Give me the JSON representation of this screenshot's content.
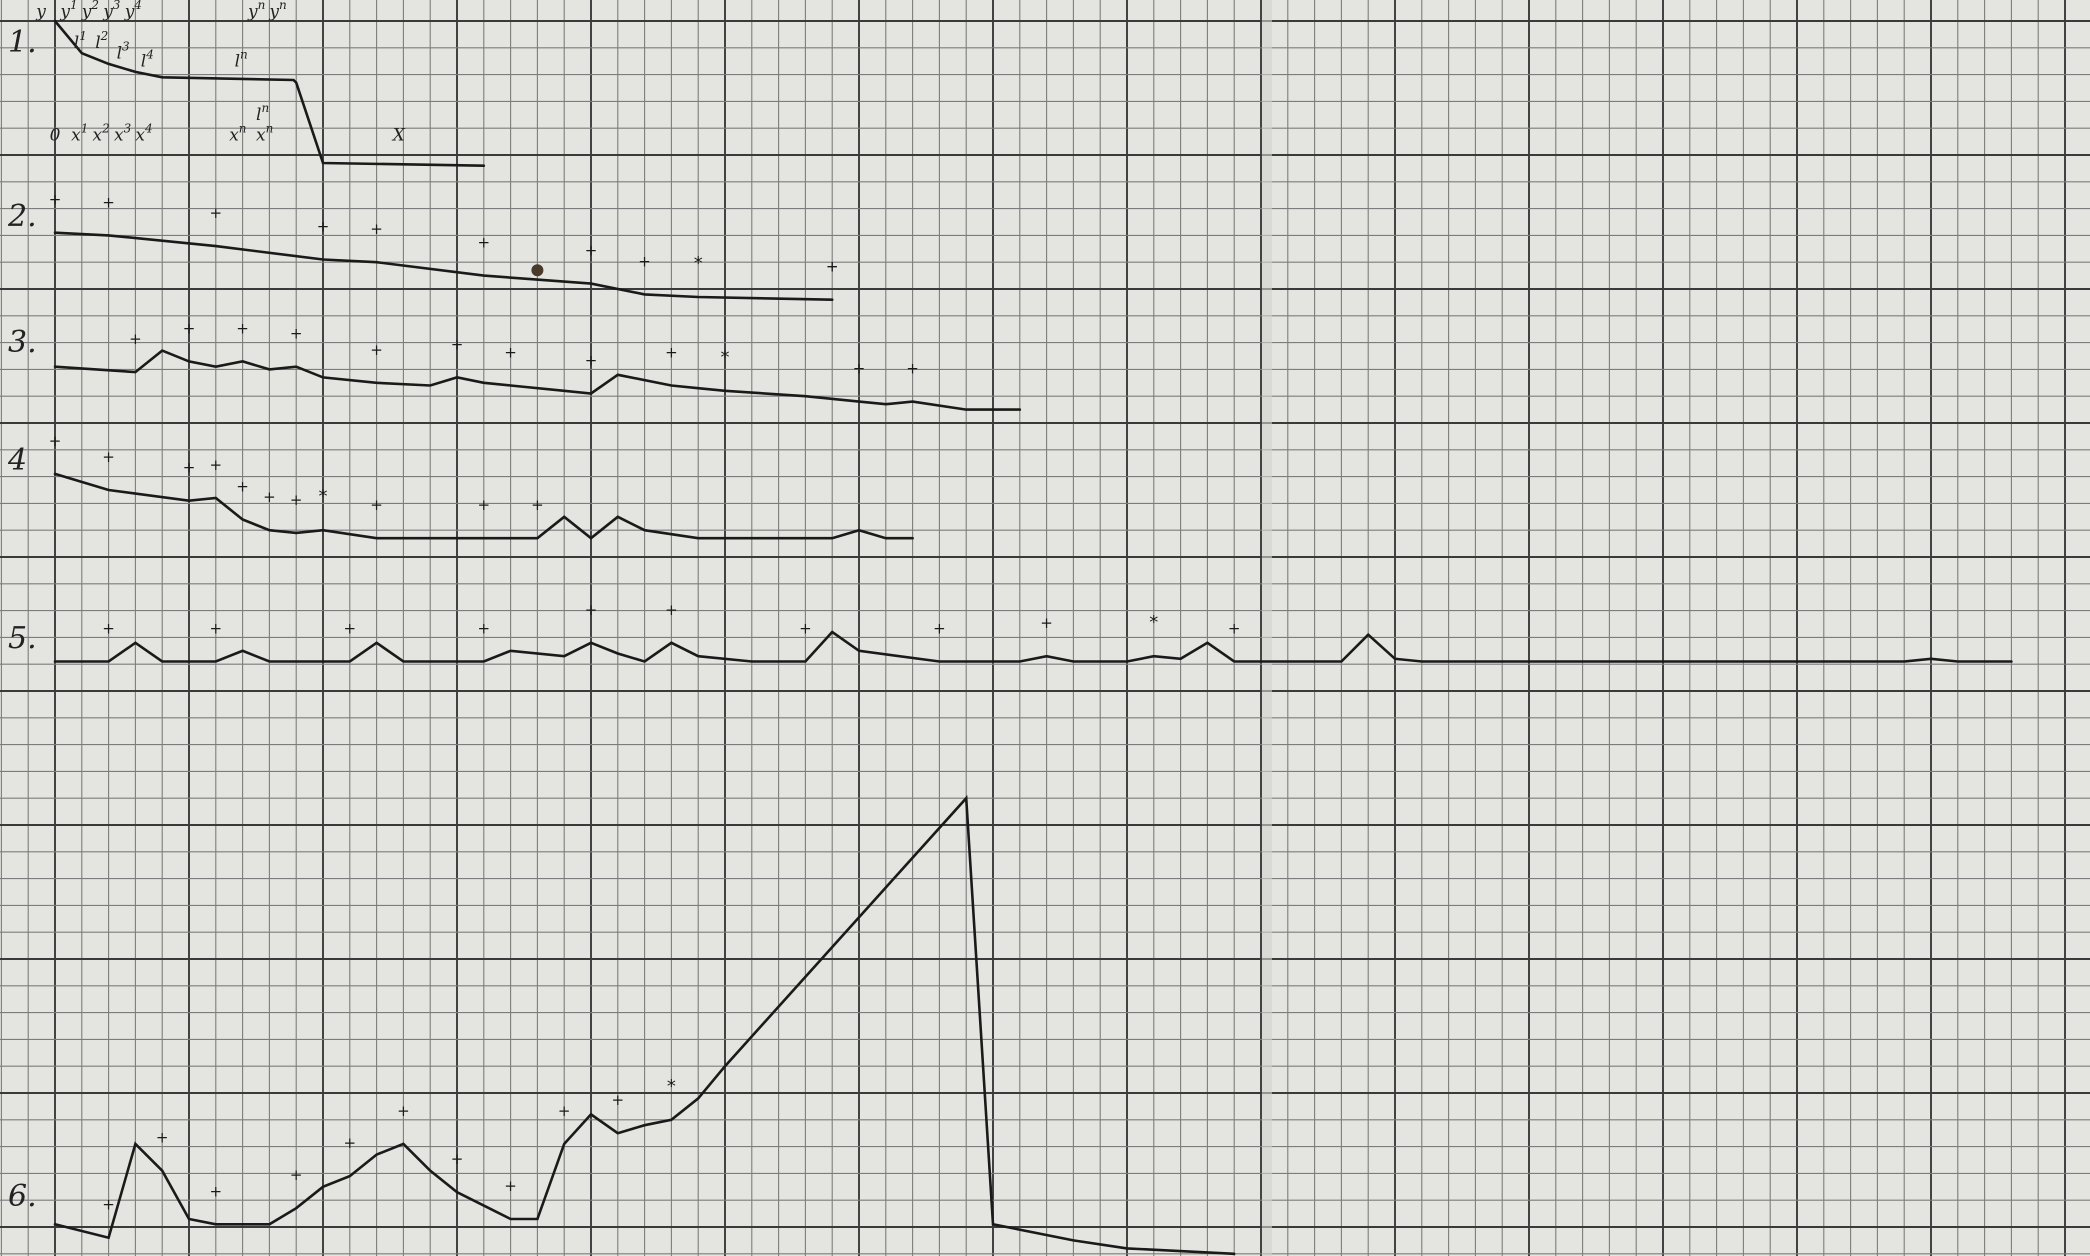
{
  "figure": {
    "row_labels": [
      "1.",
      "2.",
      "3.",
      "4",
      "5.",
      "6."
    ],
    "colors": {
      "paper": "#e4e4e0",
      "grid_light": "#7c7c7c",
      "grid_heavy": "#3a3a3a",
      "ink": "#1a1a1a"
    },
    "diagram_1": {
      "y_labels": [
        {
          "text": "y",
          "sub": "",
          "sup": ""
        },
        {
          "text": "y",
          "sub": "",
          "sup": "1"
        },
        {
          "text": "y",
          "sub": "",
          "sup": "2"
        },
        {
          "text": "y",
          "sub": "",
          "sup": "3"
        },
        {
          "text": "y",
          "sub": "",
          "sup": "4"
        },
        {
          "text": "y",
          "sub": "",
          "sup": "n"
        },
        {
          "text": "y",
          "sub": "",
          "sup": "n"
        }
      ],
      "curve_labels": [
        {
          "text": "l",
          "sup": "1"
        },
        {
          "text": "l",
          "sup": "2"
        },
        {
          "text": "l",
          "sup": "3"
        },
        {
          "text": "l",
          "sup": "4"
        },
        {
          "text": "l",
          "sup": "n"
        },
        {
          "text": "l",
          "sup": "n"
        }
      ],
      "x_labels": [
        {
          "text": "0",
          "sup": ""
        },
        {
          "text": "x",
          "sup": "1"
        },
        {
          "text": "x",
          "sup": "2"
        },
        {
          "text": "x",
          "sup": "3"
        },
        {
          "text": "x",
          "sup": "4"
        },
        {
          "text": "x",
          "sup": "n"
        },
        {
          "text": "x",
          "sup": "n"
        },
        {
          "text": "X",
          "sup": ""
        }
      ]
    },
    "traces": [
      {
        "row": 1,
        "marks": [],
        "points": [
          [
            0,
            0
          ],
          [
            1,
            1.2
          ],
          [
            2,
            1.6
          ],
          [
            3,
            1.9
          ],
          [
            4,
            2.1
          ],
          [
            8.9,
            2.2
          ],
          [
            9,
            2.3
          ],
          [
            10,
            5.3
          ],
          [
            16,
            5.4
          ]
        ]
      },
      {
        "row": 2,
        "marks": [
          "+",
          "+",
          "+",
          "+",
          "+",
          "+",
          "+",
          "+",
          "*",
          "+",
          "+"
        ],
        "points": [
          [
            0,
            7.9
          ],
          [
            2,
            8
          ],
          [
            6,
            8.4
          ],
          [
            10,
            8.9
          ],
          [
            12,
            9
          ],
          [
            16,
            9.5
          ],
          [
            20,
            9.8
          ],
          [
            22,
            10.2
          ],
          [
            24,
            10.3
          ],
          [
            29,
            10.4
          ]
        ]
      },
      {
        "row": 3,
        "marks": [
          "+",
          "+",
          "+",
          "+",
          "+",
          "+",
          "+",
          "+",
          "+",
          "*",
          "+",
          "+"
        ],
        "points": [
          [
            0,
            12.9
          ],
          [
            3,
            13.1
          ],
          [
            4,
            12.3
          ],
          [
            5,
            12.7
          ],
          [
            6,
            12.9
          ],
          [
            7,
            12.7
          ],
          [
            8,
            13
          ],
          [
            9,
            12.9
          ],
          [
            10,
            13.3
          ],
          [
            12,
            13.5
          ],
          [
            14,
            13.6
          ],
          [
            15,
            13.3
          ],
          [
            16,
            13.5
          ],
          [
            17,
            13.6
          ],
          [
            19,
            13.8
          ],
          [
            20,
            13.9
          ],
          [
            21,
            13.2
          ],
          [
            23,
            13.6
          ],
          [
            24,
            13.7
          ],
          [
            25,
            13.8
          ],
          [
            28,
            14
          ],
          [
            30,
            14.2
          ],
          [
            31,
            14.3
          ],
          [
            32,
            14.2
          ],
          [
            34,
            14.5
          ],
          [
            36,
            14.5
          ]
        ]
      },
      {
        "row": 4,
        "marks": [
          "+",
          "+",
          "+",
          "+",
          "+",
          "+",
          "+",
          "*",
          "+",
          "+",
          "+"
        ],
        "points": [
          [
            0,
            16.9
          ],
          [
            2,
            17.5
          ],
          [
            5,
            17.9
          ],
          [
            6,
            17.8
          ],
          [
            7,
            18.6
          ],
          [
            8,
            19
          ],
          [
            9,
            19.1
          ],
          [
            10,
            19
          ],
          [
            12,
            19.3
          ],
          [
            16,
            19.3
          ],
          [
            18,
            19.3
          ],
          [
            19,
            18.5
          ],
          [
            20,
            19.3
          ],
          [
            21,
            18.5
          ],
          [
            22,
            19
          ],
          [
            24,
            19.3
          ],
          [
            26,
            19.3
          ],
          [
            29,
            19.3
          ],
          [
            30,
            19
          ],
          [
            31,
            19.3
          ],
          [
            32,
            19.3
          ]
        ]
      },
      {
        "row": 5,
        "marks": [
          "+",
          "+",
          "+",
          "+",
          "+",
          "+",
          "+",
          "+",
          "+",
          "*",
          "+"
        ],
        "points": [
          [
            0,
            23.9
          ],
          [
            2,
            23.9
          ],
          [
            3,
            23.2
          ],
          [
            4,
            23.9
          ],
          [
            6,
            23.9
          ],
          [
            7,
            23.5
          ],
          [
            8,
            23.9
          ],
          [
            11,
            23.9
          ],
          [
            12,
            23.2
          ],
          [
            13,
            23.9
          ],
          [
            16,
            23.9
          ],
          [
            17,
            23.5
          ],
          [
            19,
            23.7
          ],
          [
            20,
            23.2
          ],
          [
            21,
            23.6
          ],
          [
            22,
            23.9
          ],
          [
            23,
            23.2
          ],
          [
            24,
            23.7
          ],
          [
            26,
            23.9
          ],
          [
            28,
            23.9
          ],
          [
            29,
            22.8
          ],
          [
            30,
            23.5
          ],
          [
            33,
            23.9
          ],
          [
            35,
            23.9
          ],
          [
            36,
            23.9
          ],
          [
            37,
            23.7
          ],
          [
            38,
            23.9
          ],
          [
            40,
            23.9
          ],
          [
            41,
            23.7
          ],
          [
            42,
            23.8
          ],
          [
            43,
            23.2
          ],
          [
            44,
            23.9
          ],
          [
            48,
            23.9
          ],
          [
            49,
            22.9
          ],
          [
            50,
            23.8
          ],
          [
            51,
            23.9
          ],
          [
            69,
            23.9
          ],
          [
            70,
            23.8
          ],
          [
            71,
            23.9
          ],
          [
            73,
            23.9
          ]
        ]
      },
      {
        "row": 6,
        "marks": [
          "+",
          "+",
          "+",
          "+",
          "+",
          "+",
          "+",
          "+",
          "+",
          "+",
          "*"
        ],
        "points": [
          [
            0,
            44.9
          ],
          [
            2,
            45.4
          ],
          [
            3,
            41.9
          ],
          [
            4,
            42.9
          ],
          [
            5,
            44.7
          ],
          [
            6,
            44.9
          ],
          [
            8,
            44.9
          ],
          [
            9,
            44.3
          ],
          [
            10,
            43.5
          ],
          [
            11,
            43.1
          ],
          [
            12,
            42.3
          ],
          [
            13,
            41.9
          ],
          [
            14,
            42.9
          ],
          [
            15,
            43.7
          ],
          [
            16,
            44.2
          ],
          [
            17,
            44.7
          ],
          [
            18,
            44.7
          ],
          [
            19,
            41.9
          ],
          [
            20,
            40.8
          ],
          [
            21,
            41.5
          ],
          [
            22,
            41.2
          ],
          [
            23,
            41
          ],
          [
            24,
            40.2
          ],
          [
            25,
            39
          ],
          [
            34,
            29
          ],
          [
            35,
            44.9
          ],
          [
            38,
            45.5
          ],
          [
            40,
            45.8
          ],
          [
            44,
            46
          ]
        ]
      }
    ]
  }
}
